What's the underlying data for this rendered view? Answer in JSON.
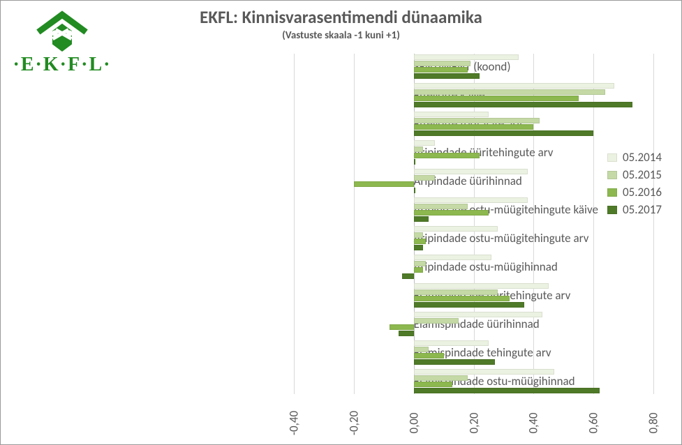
{
  "title": "EKFL: Kinnisvarasentimendi dünaamika",
  "title_fontsize": 25,
  "subtitle": "(Vastuste skaala -1 kuni +1)",
  "subtitle_fontsize": 15,
  "logo_text": "·E·K·F·L·",
  "chart": {
    "type": "grouped-horizontal-bar",
    "background": "#ffffff",
    "grid_color": "#d9d9d9",
    "axis_color": "#bfbfbf",
    "label_color": "#595959",
    "label_fontsize": 17,
    "tick_fontsize": 17,
    "xmin": -0.4,
    "xmax": 0.8,
    "xticks": [
      -0.4,
      -0.2,
      0.0,
      0.2,
      0.4,
      0.6,
      0.8
    ],
    "xtick_labels": [
      "-0,40",
      "-0,20",
      "0,00",
      "0,20",
      "0,40",
      "0,60",
      "0,80"
    ],
    "series": [
      {
        "key": "05.2014",
        "color": "#ecf2e1"
      },
      {
        "key": "05.2015",
        "color": "#c4d9a5"
      },
      {
        "key": "05.2016",
        "color": "#8cb84f"
      },
      {
        "key": "05.2017",
        "color": "#4f7a28"
      }
    ],
    "bar_thickness": 8,
    "bar_gap": 1,
    "group_gap": 6,
    "categories": [
      {
        "label": "SENTIMENT (koond)",
        "values": [
          0.35,
          0.19,
          0.18,
          0.22
        ]
      },
      {
        "label": "Ettevõtte käive",
        "values": [
          0.67,
          0.64,
          0.55,
          0.73
        ]
      },
      {
        "label": "Ettevõtte töötajate arv",
        "values": [
          0.25,
          0.42,
          0.4,
          0.6
        ]
      },
      {
        "label": "Äripindade üüritehingute arv",
        "values": [
          0.07,
          0.03,
          0.22,
          0.0
        ]
      },
      {
        "label": "Äripindade üürihinnad",
        "values": [
          0.38,
          0.07,
          -0.2,
          0.0
        ]
      },
      {
        "label": "Äripindade ostu-müügitehingute käive",
        "values": [
          0.38,
          0.18,
          0.25,
          0.05
        ]
      },
      {
        "label": "Äripindade ostu-müügitehingute arv",
        "values": [
          0.28,
          0.03,
          0.04,
          0.03
        ]
      },
      {
        "label": "Äripindade ostu-müügihinnad",
        "values": [
          0.26,
          0.04,
          0.03,
          -0.04
        ]
      },
      {
        "label": "Elamispindade üüritehingute arv",
        "values": [
          0.45,
          0.28,
          0.32,
          0.37
        ]
      },
      {
        "label": "Elamispindade üürihinnad",
        "values": [
          0.43,
          0.15,
          -0.08,
          -0.05
        ]
      },
      {
        "label": "Elamispindade tehingute arv",
        "values": [
          0.25,
          0.05,
          0.1,
          0.27
        ]
      },
      {
        "label": "Elamispindade ostu-müügihinnad",
        "values": [
          0.47,
          0.18,
          0.13,
          0.62
        ]
      }
    ]
  },
  "legend": {
    "fontsize": 17,
    "items": [
      "05.2014",
      "05.2015",
      "05.2016",
      "05.2017"
    ]
  }
}
